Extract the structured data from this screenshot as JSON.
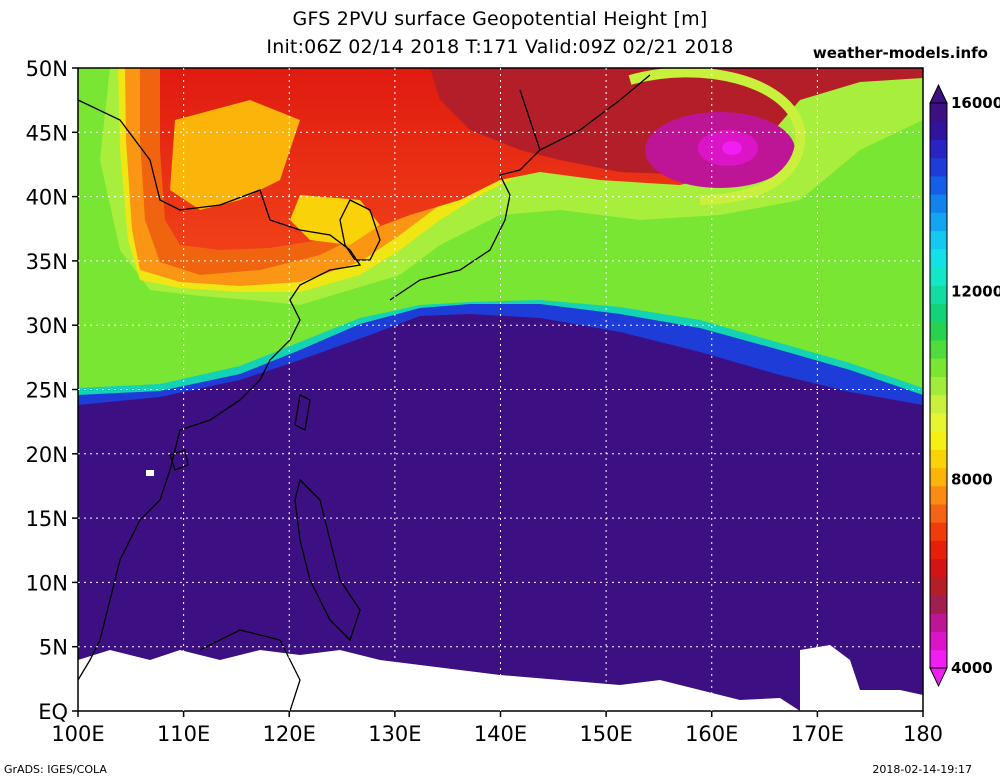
{
  "title": {
    "line1": "GFS 2PVU surface Geopotential Height [m]",
    "line2": "Init:06Z 02/14 2018 T:171 Valid:09Z 02/21 2018"
  },
  "brand": "weather-models.info",
  "footer": {
    "left": "GrADS: IGES/COLA",
    "right": "2018-02-14-19:17"
  },
  "map": {
    "lon_range": [
      100,
      180
    ],
    "lat_range": [
      0,
      50
    ],
    "lon_ticks": [
      {
        "v": 100,
        "label": "100E"
      },
      {
        "v": 110,
        "label": "110E"
      },
      {
        "v": 120,
        "label": "120E"
      },
      {
        "v": 130,
        "label": "130E"
      },
      {
        "v": 140,
        "label": "140E"
      },
      {
        "v": 150,
        "label": "150E"
      },
      {
        "v": 160,
        "label": "160E"
      },
      {
        "v": 170,
        "label": "170E"
      },
      {
        "v": 180,
        "label": "180"
      }
    ],
    "lat_ticks": [
      {
        "v": 0,
        "label": "EQ"
      },
      {
        "v": 5,
        "label": "5N"
      },
      {
        "v": 10,
        "label": "10N"
      },
      {
        "v": 15,
        "label": "15N"
      },
      {
        "v": 20,
        "label": "20N"
      },
      {
        "v": 25,
        "label": "25N"
      },
      {
        "v": 30,
        "label": "30N"
      },
      {
        "v": 35,
        "label": "35N"
      },
      {
        "v": 40,
        "label": "40N"
      },
      {
        "v": 45,
        "label": "45N"
      },
      {
        "v": 50,
        "label": "50N"
      }
    ],
    "grid": "dotted"
  },
  "colorbar": {
    "range": [
      4000,
      16000
    ],
    "labels": [
      {
        "v": 4000,
        "label": "4000"
      },
      {
        "v": 8000,
        "label": "8000"
      },
      {
        "v": 12000,
        "label": "12000"
      },
      {
        "v": 16000,
        "label": "16000"
      }
    ],
    "colors": [
      "#f01ef0",
      "#dc14c8",
      "#be1496",
      "#a01e50",
      "#b41e28",
      "#d21414",
      "#e61e0a",
      "#f03c0a",
      "#f56414",
      "#fa8c14",
      "#fab40a",
      "#fad20a",
      "#f5f014",
      "#e6f532",
      "#c8f03c",
      "#a0eb3c",
      "#78e632",
      "#50dc3c",
      "#28d250",
      "#14d278",
      "#14dca0",
      "#14e6c8",
      "#14e1e6",
      "#14c8f0",
      "#14a5f0",
      "#1482eb",
      "#145fe6",
      "#1e3cd7",
      "#2a23c3",
      "#32149b",
      "#3c0f82"
    ]
  }
}
